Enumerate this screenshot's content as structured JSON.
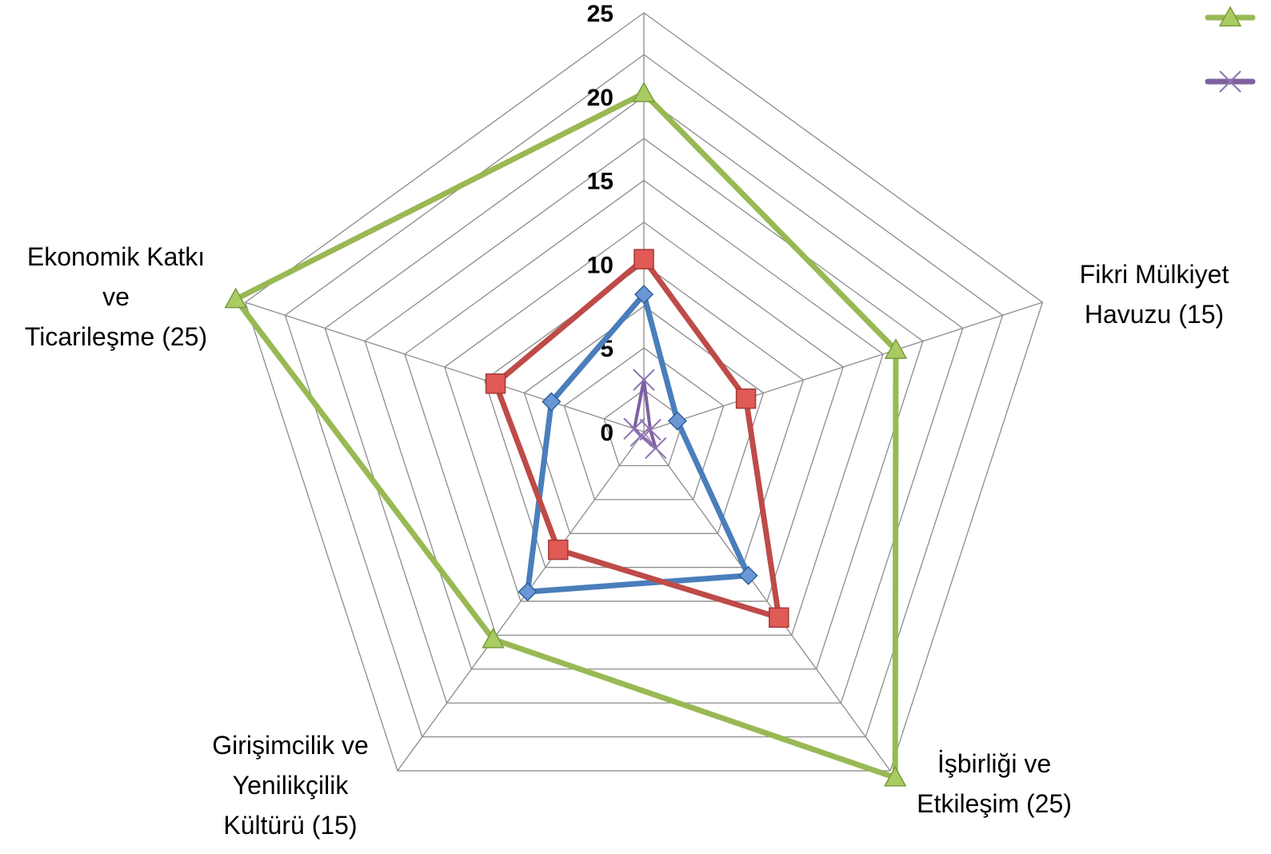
{
  "chart_data": {
    "type": "radar",
    "axes": [
      {
        "label": "",
        "max": 25
      },
      {
        "label": "Fikri Mülkiyet\nHavuzu (15)",
        "max": 15
      },
      {
        "label": "İşbirliği ve\nEtkileşim (25)",
        "max": 25
      },
      {
        "label": "Girişimcilik ve\nYenilikçilik\nKültürü (15)",
        "max": 15
      },
      {
        "label": "Ekonomik Katkı\nve\nTicarileşme (25)",
        "max": 25
      }
    ],
    "rlim": [
      0,
      25
    ],
    "ticks": [
      "0",
      "5",
      "10",
      "15",
      "20",
      "25"
    ],
    "series": [
      {
        "color": "#4a7ebb",
        "marker": "diamond",
        "values": [
          8.2,
          2.1,
          10.6,
          11.8,
          5.8
        ]
      },
      {
        "color": "#be4b48",
        "marker": "square",
        "values": [
          10.3,
          6.4,
          13.7,
          8.7,
          9.3
        ]
      },
      {
        "color": "#98b954",
        "marker": "triangle",
        "values": [
          20.2,
          15.8,
          25.5,
          15.3,
          25.6
        ]
      },
      {
        "color": "#7d60a0",
        "marker": "x",
        "values": [
          3.1,
          0.4,
          1.2,
          0.3,
          0.6
        ]
      }
    ],
    "legend": {
      "position": "top-right",
      "entries": [
        {
          "color": "#98b954",
          "marker": "triangle"
        },
        {
          "color": "#7d60a0",
          "marker": "x"
        }
      ]
    },
    "grid": true
  }
}
